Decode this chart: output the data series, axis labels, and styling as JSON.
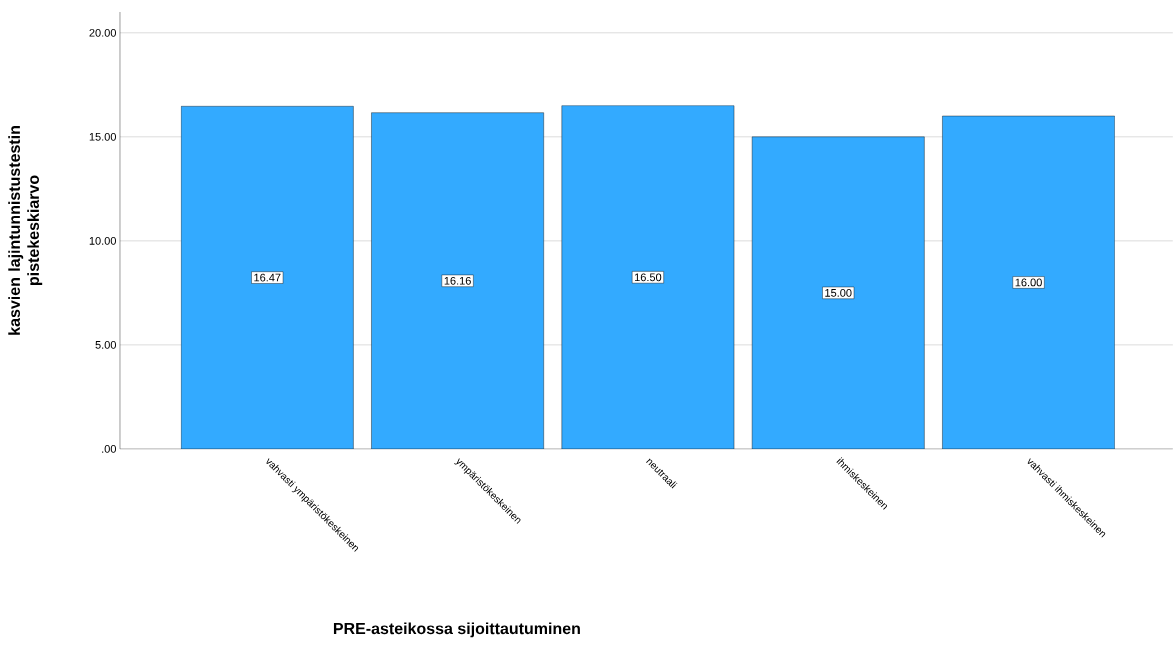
{
  "chart_data": {
    "type": "bar",
    "xlabel": "PRE-asteikossa sijoittautuminen",
    "ylabel": "kasvien lajintunnistustestin pistekeskiarvo",
    "categories": [
      "vahvasti ympäristökeskeinen",
      "ympäristökeskeinen",
      "neutraali",
      "ihmiskeskeinen",
      "vahvasti ihmiskeskeinen"
    ],
    "values": [
      16.47,
      16.16,
      16.5,
      15.0,
      16.0
    ],
    "value_labels": [
      "16.47",
      "16.16",
      "16.50",
      "15.00",
      "16.00"
    ],
    "color": "#33aaff",
    "ylim": [
      0,
      21
    ],
    "yticks": [
      {
        "value": 0,
        "label": ".00"
      },
      {
        "value": 5,
        "label": "5.00"
      },
      {
        "value": 10,
        "label": "10.00"
      },
      {
        "value": 15,
        "label": "15.00"
      },
      {
        "value": 20,
        "label": "20.00"
      }
    ],
    "grid": "y"
  }
}
